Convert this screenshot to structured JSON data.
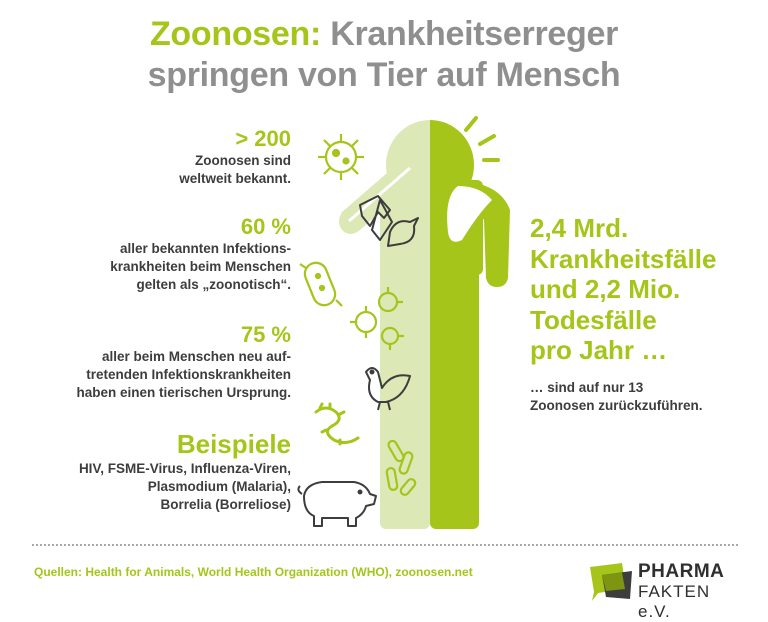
{
  "title": {
    "accent": "Zoonosen:",
    "rest_line1": "Krankheitserreger",
    "line2": "springen von Tier auf Mensch"
  },
  "stats": [
    {
      "number": "> 200",
      "lines": [
        "Zoonosen sind",
        "weltweit bekannt."
      ]
    },
    {
      "number": "60 %",
      "lines": [
        "aller bekannten Infektions-",
        "krankheiten beim Menschen",
        "gelten als „zoonotisch“."
      ]
    },
    {
      "number": "75 %",
      "lines": [
        "aller beim Menschen neu auf-",
        "tretenden Infektionskrankheiten",
        "haben einen tierischen Ursprung."
      ]
    }
  ],
  "examples": {
    "heading": "Beispiele",
    "lines": [
      "HIV, FSME-Virus, Influenza-Viren,",
      "Plasmodium (Malaria),",
      "Borrelia (Borreliose)"
    ]
  },
  "right_big": [
    "2,4 Mrd.",
    "Krankheitsfälle",
    "und 2,2 Mio.",
    "Todesfälle",
    "pro Jahr …"
  ],
  "right_small": [
    "… sind auf nur 13",
    "Zoonosen zurückzuführen."
  ],
  "sources": "Quellen: Health for Animals, World Health Organization (WHO), zoonosen.net",
  "logo": {
    "line1": "PHARMA",
    "line2": "FAKTEN e.V."
  },
  "icons": [
    "virus-icon",
    "bat-icon",
    "bird-icon",
    "bacterium-icon",
    "virus-cluster-icon",
    "chicken-icon",
    "worm-icon",
    "bacteria-group-icon",
    "pig-icon",
    "sneeze-icon"
  ],
  "colors": {
    "accent": "#a5c51a",
    "accent_light": "#dde8b7",
    "text": "#3d3d3d",
    "title_gray": "#8f8f8f"
  }
}
